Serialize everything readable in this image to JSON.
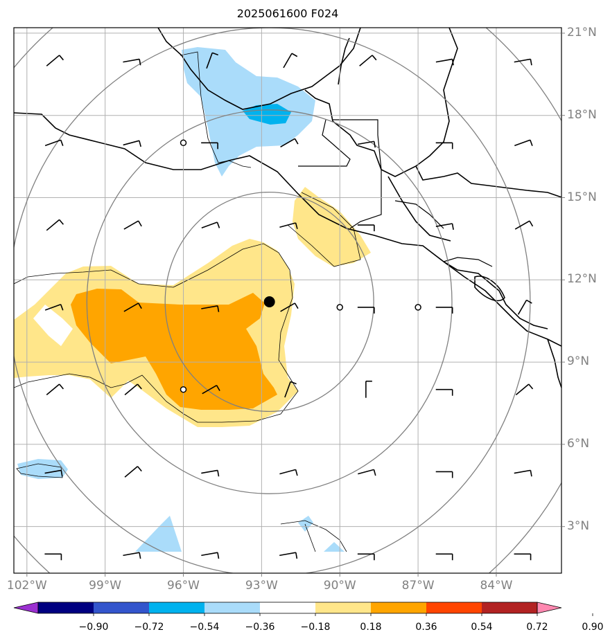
{
  "title": "2025061600 F024",
  "map": {
    "type": "map",
    "projection": "plate-carree",
    "extent": {
      "lon_min": -102.5,
      "lon_max": -81.5,
      "lat_min": 1.3,
      "lat_max": 21.2
    },
    "storm_center": {
      "lon": -92.7,
      "lat": 11.2
    },
    "range_ring_radii_deg": [
      4.0,
      7.0,
      10.0,
      13.0
    ],
    "station_circles": [
      {
        "lon": -96.0,
        "lat": 17.0
      },
      {
        "lon": -90.0,
        "lat": 11.0
      },
      {
        "lon": -87.0,
        "lat": 11.0
      },
      {
        "lon": -96.0,
        "lat": 8.0
      }
    ]
  },
  "gridlines": {
    "lat": [
      3,
      6,
      9,
      12,
      15,
      18,
      21
    ],
    "lon": [
      -102,
      -99,
      -96,
      -93,
      -90,
      -87,
      -84
    ]
  },
  "lat_labels": [
    "3°N",
    "6°N",
    "9°N",
    "12°N",
    "15°N",
    "18°N",
    "21°N"
  ],
  "lon_labels": [
    "102°W",
    "99°W",
    "96°W",
    "93°W",
    "90°W",
    "87°W",
    "84°W"
  ],
  "colorbar": {
    "ticks": [
      "−0.90",
      "−0.72",
      "−0.54",
      "−0.36",
      "−0.18",
      "0.18",
      "0.36",
      "0.54",
      "0.72",
      "0.90"
    ],
    "colors": {
      "below": "#9b30d0",
      "bins": [
        "#000080",
        "#3355cc",
        "#00b2ee",
        "#aadcfa",
        "#ffffff",
        "#ffe68a",
        "#ffa500",
        "#ff4500",
        "#b22222"
      ],
      "above": "#ff88b0"
    }
  },
  "colors": {
    "pos_low": "#ffe68a",
    "pos_mid": "#ffa500",
    "neg_low": "#aadcfa",
    "neg_mid": "#00b2ee",
    "ring": "#808080",
    "grid": "#b0b0b0",
    "coast": "#000000"
  }
}
